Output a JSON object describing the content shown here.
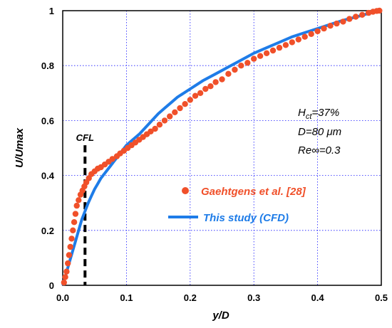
{
  "chart_data": {
    "type": "scatter",
    "xlabel": "y/D",
    "ylabel": "U/Umax",
    "xlim": [
      0,
      0.5
    ],
    "ylim": [
      0,
      1
    ],
    "x_ticks": [
      "0.0",
      "0.1",
      "0.2",
      "0.3",
      "0.4",
      "0.5"
    ],
    "y_ticks": [
      "0",
      "0.2",
      "0.4",
      "0.6",
      "0.8",
      "1"
    ],
    "grid": true,
    "legend_position": "center-right",
    "annotations": {
      "hct_prefix": "H",
      "hct_sub": "ct",
      "hct_value": "=37%",
      "diameter": "D=80 μm",
      "reynolds": "Re∞=0.3",
      "cfl_label": "CFL",
      "cfl_x": 0.035
    },
    "series": [
      {
        "name": "Gaehtgens et al. [28]",
        "kind": "points",
        "color": "#f0502a",
        "points": [
          [
            0.002,
            0.01
          ],
          [
            0.004,
            0.03
          ],
          [
            0.006,
            0.05
          ],
          [
            0.008,
            0.08
          ],
          [
            0.01,
            0.11
          ],
          [
            0.012,
            0.14
          ],
          [
            0.014,
            0.17
          ],
          [
            0.016,
            0.2
          ],
          [
            0.018,
            0.23
          ],
          [
            0.02,
            0.26
          ],
          [
            0.022,
            0.29
          ],
          [
            0.025,
            0.31
          ],
          [
            0.028,
            0.33
          ],
          [
            0.031,
            0.345
          ],
          [
            0.034,
            0.36
          ],
          [
            0.037,
            0.375
          ],
          [
            0.041,
            0.39
          ],
          [
            0.045,
            0.405
          ],
          [
            0.05,
            0.415
          ],
          [
            0.055,
            0.425
          ],
          [
            0.06,
            0.43
          ],
          [
            0.066,
            0.44
          ],
          [
            0.072,
            0.45
          ],
          [
            0.078,
            0.46
          ],
          [
            0.085,
            0.47
          ],
          [
            0.09,
            0.48
          ],
          [
            0.096,
            0.49
          ],
          [
            0.102,
            0.5
          ],
          [
            0.108,
            0.51
          ],
          [
            0.114,
            0.52
          ],
          [
            0.12,
            0.53
          ],
          [
            0.126,
            0.54
          ],
          [
            0.132,
            0.55
          ],
          [
            0.138,
            0.56
          ],
          [
            0.145,
            0.57
          ],
          [
            0.152,
            0.585
          ],
          [
            0.16,
            0.6
          ],
          [
            0.168,
            0.615
          ],
          [
            0.176,
            0.63
          ],
          [
            0.184,
            0.645
          ],
          [
            0.192,
            0.66
          ],
          [
            0.2,
            0.675
          ],
          [
            0.208,
            0.69
          ],
          [
            0.216,
            0.7
          ],
          [
            0.224,
            0.715
          ],
          [
            0.232,
            0.725
          ],
          [
            0.24,
            0.74
          ],
          [
            0.25,
            0.75
          ],
          [
            0.26,
            0.77
          ],
          [
            0.27,
            0.785
          ],
          [
            0.28,
            0.8
          ],
          [
            0.29,
            0.81
          ],
          [
            0.3,
            0.825
          ],
          [
            0.31,
            0.835
          ],
          [
            0.32,
            0.845
          ],
          [
            0.33,
            0.855
          ],
          [
            0.34,
            0.865
          ],
          [
            0.35,
            0.875
          ],
          [
            0.36,
            0.885
          ],
          [
            0.37,
            0.895
          ],
          [
            0.38,
            0.905
          ],
          [
            0.39,
            0.915
          ],
          [
            0.4,
            0.925
          ],
          [
            0.41,
            0.935
          ],
          [
            0.42,
            0.945
          ],
          [
            0.43,
            0.953
          ],
          [
            0.44,
            0.96
          ],
          [
            0.45,
            0.97
          ],
          [
            0.46,
            0.978
          ],
          [
            0.47,
            0.985
          ],
          [
            0.48,
            0.992
          ],
          [
            0.487,
            0.996
          ],
          [
            0.493,
            0.999
          ],
          [
            0.497,
            1.0
          ]
        ]
      },
      {
        "name": "This study (CFD)",
        "kind": "line",
        "color": "#1e7ce8",
        "points": [
          [
            0.0,
            0.0
          ],
          [
            0.005,
            0.04
          ],
          [
            0.01,
            0.08
          ],
          [
            0.015,
            0.12
          ],
          [
            0.02,
            0.16
          ],
          [
            0.025,
            0.2
          ],
          [
            0.03,
            0.24
          ],
          [
            0.035,
            0.27
          ],
          [
            0.04,
            0.3
          ],
          [
            0.045,
            0.325
          ],
          [
            0.05,
            0.35
          ],
          [
            0.055,
            0.37
          ],
          [
            0.06,
            0.39
          ],
          [
            0.065,
            0.405
          ],
          [
            0.07,
            0.42
          ],
          [
            0.075,
            0.435
          ],
          [
            0.08,
            0.45
          ],
          [
            0.085,
            0.465
          ],
          [
            0.09,
            0.48
          ],
          [
            0.095,
            0.495
          ],
          [
            0.1,
            0.51
          ],
          [
            0.11,
            0.53
          ],
          [
            0.12,
            0.55
          ],
          [
            0.13,
            0.575
          ],
          [
            0.14,
            0.6
          ],
          [
            0.15,
            0.625
          ],
          [
            0.16,
            0.645
          ],
          [
            0.17,
            0.665
          ],
          [
            0.18,
            0.685
          ],
          [
            0.19,
            0.7
          ],
          [
            0.2,
            0.715
          ],
          [
            0.22,
            0.745
          ],
          [
            0.24,
            0.77
          ],
          [
            0.26,
            0.795
          ],
          [
            0.28,
            0.82
          ],
          [
            0.3,
            0.845
          ],
          [
            0.32,
            0.865
          ],
          [
            0.34,
            0.885
          ],
          [
            0.36,
            0.905
          ],
          [
            0.38,
            0.92
          ],
          [
            0.4,
            0.935
          ],
          [
            0.42,
            0.95
          ],
          [
            0.44,
            0.965
          ],
          [
            0.46,
            0.977
          ],
          [
            0.48,
            0.99
          ],
          [
            0.5,
            1.0
          ]
        ]
      }
    ]
  }
}
